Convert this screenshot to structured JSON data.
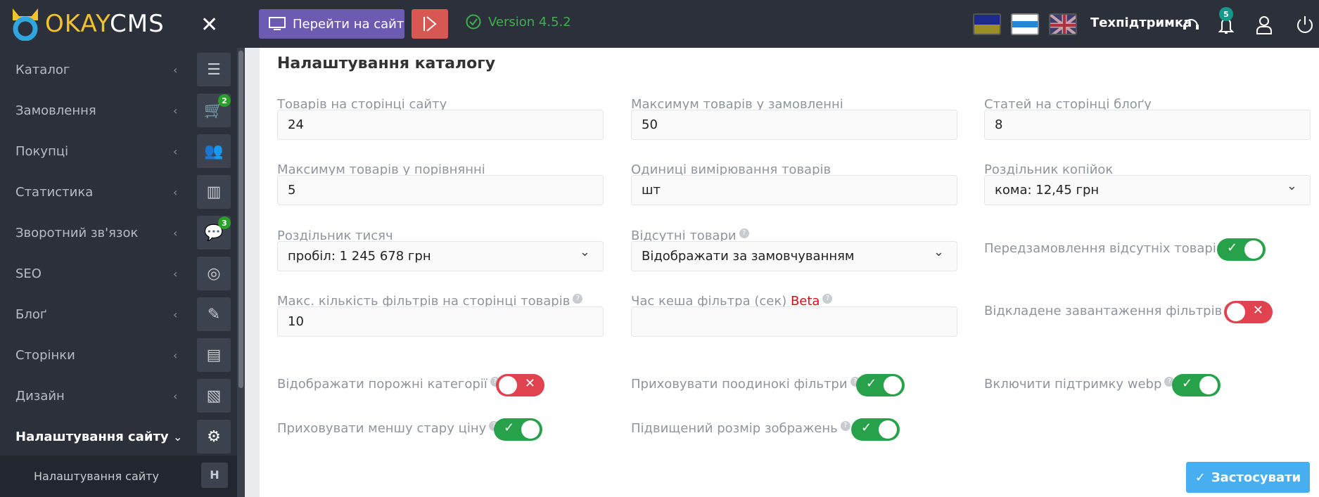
{
  "header": {
    "logo_text_a": "OKAY",
    "logo_text_b": "CMS",
    "go_to_site": "Перейти на сайт",
    "version": "Version 4.5.2",
    "support": "Техпідтримка",
    "notifications_count": "5",
    "languages": [
      "uk",
      "ru",
      "en"
    ]
  },
  "sidebar": {
    "items": [
      {
        "label": "Каталог",
        "icon": "list-icon"
      },
      {
        "label": "Замовлення",
        "icon": "cart-icon",
        "badge": "2"
      },
      {
        "label": "Покупці",
        "icon": "users-icon"
      },
      {
        "label": "Статистика",
        "icon": "bar-chart-icon"
      },
      {
        "label": "Зворотний зв'язок",
        "icon": "comments-icon",
        "badge": "3"
      },
      {
        "label": "SEO",
        "icon": "target-icon"
      },
      {
        "label": "Блоґ",
        "icon": "pencil-icon"
      },
      {
        "label": "Сторінки",
        "icon": "page-icon"
      },
      {
        "label": "Дизайн",
        "icon": "design-icon"
      },
      {
        "label": "Налаштування сайту",
        "icon": "gear-icon",
        "active": true
      }
    ],
    "subitem": {
      "label": "Налаштування сайту",
      "key": "H"
    }
  },
  "main": {
    "title": "Налаштування каталогу",
    "fields": {
      "per_page": {
        "label": "Товарів на сторінці сайту",
        "value": "24"
      },
      "max_order": {
        "label": "Максимум товарів у замовленні",
        "value": "50"
      },
      "blog_per_page": {
        "label": "Статей на сторінці блоґу",
        "value": "8"
      },
      "max_compare": {
        "label": "Максимум товарів у порівнянні",
        "value": "5"
      },
      "units": {
        "label": "Одиниці вимірювання товарів",
        "value": "шт"
      },
      "decimal_sep": {
        "label": "Роздільник копійок",
        "value": "кома: 12,45 грн"
      },
      "thousands_sep": {
        "label": "Роздільник тисяч",
        "value": "пробіл: 1 245 678 грн"
      },
      "missing": {
        "label": "Відсутні товари",
        "value": "Відображати за замовчуванням"
      },
      "max_filters": {
        "label": "Макс. кількість фільтрів на сторінці товарів",
        "value": "10"
      },
      "filter_cache": {
        "label": "Час кеша фільтра (сек)",
        "beta": "Beta",
        "value": ""
      }
    },
    "toggles": {
      "preorder": {
        "label": "Передзамовлення відсутніх товарів",
        "on": true
      },
      "lazy_filters": {
        "label": "Відкладене завантаження фільтрів",
        "on": false
      },
      "empty_cats": {
        "label": "Відображати порожні категорії",
        "on": false
      },
      "hide_single": {
        "label": "Приховувати поодинокі фільтри",
        "on": true
      },
      "webp": {
        "label": "Включити підтримку webp",
        "on": true
      },
      "hide_old_price": {
        "label": "Приховувати меншу стару ціну",
        "on": true
      },
      "big_images": {
        "label": "Підвищений розмір зображень",
        "on": true
      }
    },
    "apply": "Застосувати"
  },
  "colors": {
    "accent": "#47aef0",
    "on": "#28a24a",
    "off": "#e0424f",
    "sidebar": "#2b303b"
  }
}
